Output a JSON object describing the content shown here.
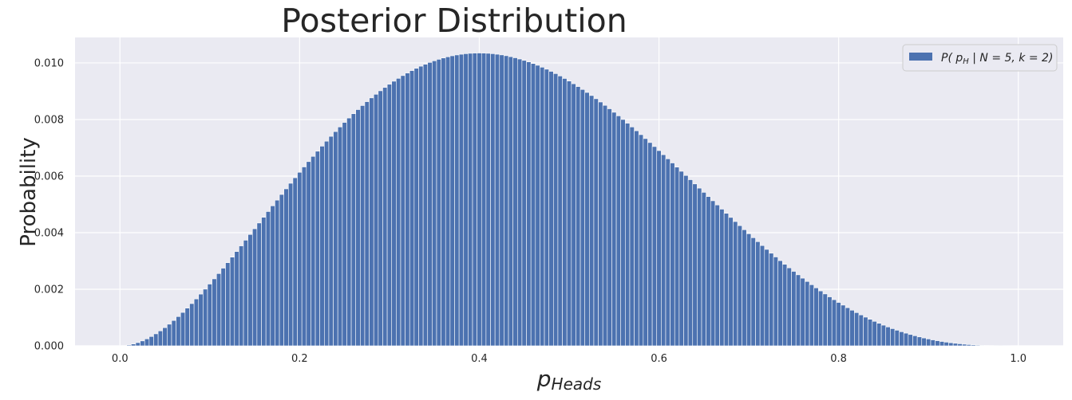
{
  "chart_data": {
    "type": "bar",
    "title": "Posterior Distribution",
    "xlabel": "p_Heads",
    "xlabel_main": "p",
    "xlabel_sub": "Heads",
    "ylabel": "Probability",
    "xlim": [
      -0.05,
      1.05
    ],
    "ylim": [
      0,
      0.0109
    ],
    "xticks": [
      0.0,
      0.2,
      0.4,
      0.6,
      0.8,
      1.0
    ],
    "xtick_labels": [
      "0.0",
      "0.2",
      "0.4",
      "0.6",
      "0.8",
      "1.0"
    ],
    "yticks": [
      0.0,
      0.002,
      0.004,
      0.006,
      0.008,
      0.01
    ],
    "ytick_labels": [
      "0.000",
      "0.002",
      "0.004",
      "0.006",
      "0.008",
      "0.010"
    ],
    "grid": true,
    "legend_position": "top-right",
    "distribution": {
      "family": "beta-binomial posterior",
      "N": 5,
      "k": 2,
      "x_start": 0,
      "x_end": 1,
      "bar_count": 201,
      "peak_value": 0.01035
    },
    "series": [
      {
        "name": "P( p_H | N = 5, k = 2)",
        "legend_parts": {
          "prefix": "P( p",
          "sub": "H",
          "suffix": " | N = 5, k = 2)"
        },
        "color": "#4c72b0"
      }
    ],
    "colors": {
      "background": "#eaeaf2",
      "grid": "#ffffff",
      "bar": "#4c72b0",
      "bar_edge": "#ffffff",
      "text": "#262626",
      "legend_bg": "#eaeaf2",
      "legend_edge": "#cccccc"
    }
  }
}
